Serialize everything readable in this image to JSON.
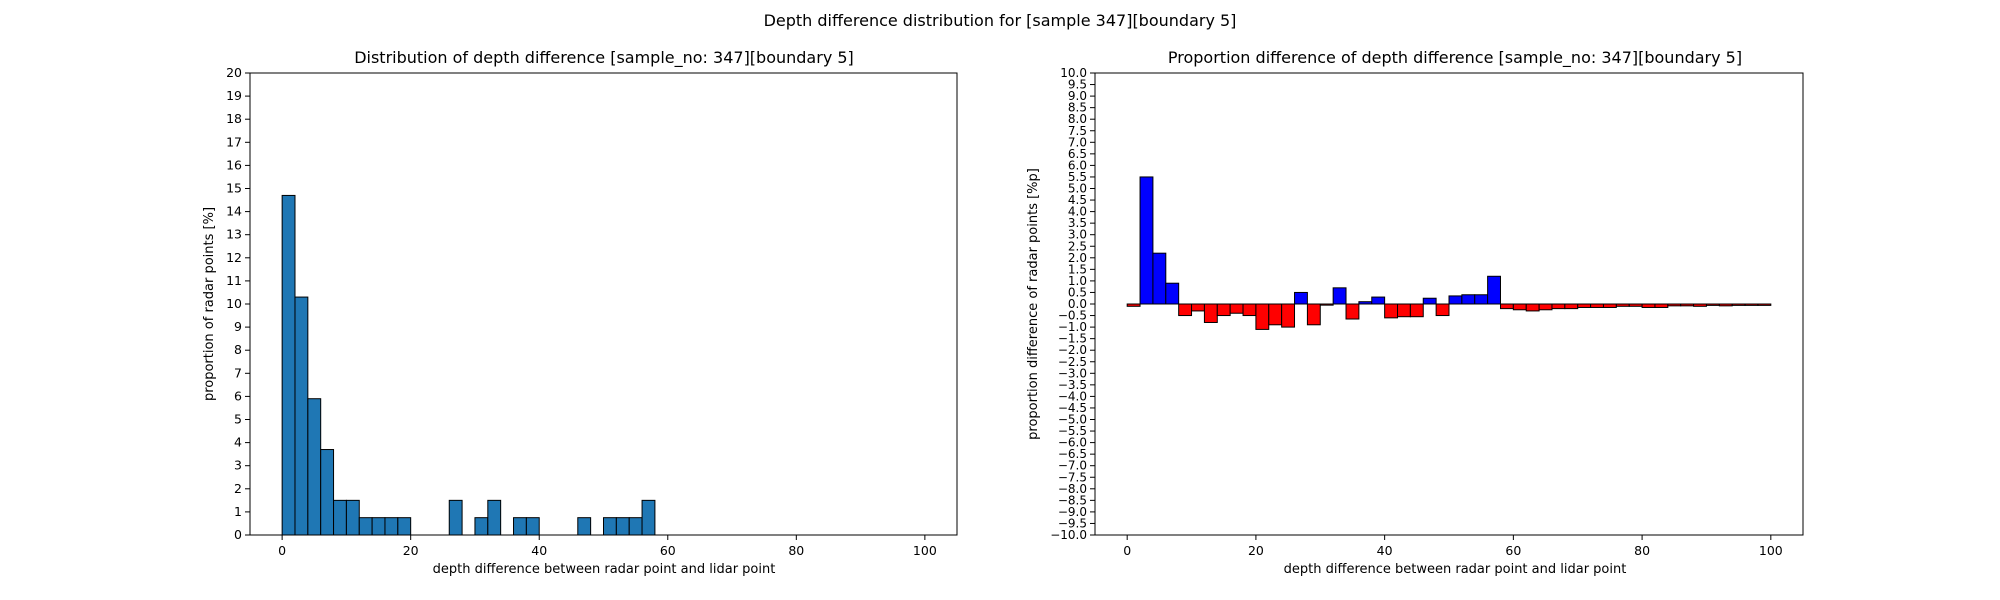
{
  "figure": {
    "suptitle": "Depth difference distribution for [sample 347][boundary 5]"
  },
  "chart_data": [
    {
      "type": "bar",
      "title": "Distribution of depth difference [sample_no: 347][boundary 5]",
      "xlabel": "depth difference between radar point and lidar point",
      "ylabel": "proportion of radar points [%]",
      "xlim": [
        -5,
        105
      ],
      "ylim": [
        0,
        20
      ],
      "xticks": [
        0,
        20,
        40,
        60,
        80,
        100
      ],
      "yticks": [
        0,
        1,
        2,
        3,
        4,
        5,
        6,
        7,
        8,
        9,
        10,
        11,
        12,
        13,
        14,
        15,
        16,
        17,
        18,
        19,
        20
      ],
      "bin_edges_start": 0,
      "bin_width": 2,
      "values": [
        14.7,
        10.3,
        5.9,
        3.7,
        1.5,
        1.5,
        0.75,
        0.75,
        0.75,
        0.75,
        0,
        0,
        0,
        1.5,
        0,
        0.75,
        1.5,
        0,
        0.75,
        0.75,
        0,
        0,
        0,
        0.75,
        0,
        0.75,
        0.75,
        0.75,
        1.5,
        0,
        0,
        0,
        0,
        0,
        0,
        0,
        0,
        0,
        0,
        0,
        0,
        0,
        0,
        0,
        0,
        0,
        0,
        0,
        0,
        0
      ],
      "color": "#1f77b4",
      "edgecolor": "#000000",
      "grid": false
    },
    {
      "type": "bar",
      "title": "Proportion difference of depth difference [sample_no: 347][boundary 5]",
      "xlabel": "depth difference between radar point and lidar point",
      "ylabel": "proportion difference of radar points [%p]",
      "xlim": [
        -5,
        105
      ],
      "ylim": [
        -10,
        10
      ],
      "xticks": [
        0,
        20,
        40,
        60,
        80,
        100
      ],
      "yticks": [
        -10.0,
        -9.5,
        -9.0,
        -8.5,
        -8.0,
        -7.5,
        -7.0,
        -6.5,
        -6.0,
        -5.5,
        -5.0,
        -4.5,
        -4.0,
        -3.5,
        -3.0,
        -2.5,
        -2.0,
        -1.5,
        -1.0,
        -0.5,
        0.0,
        0.5,
        1.0,
        1.5,
        2.0,
        2.5,
        3.0,
        3.5,
        4.0,
        4.5,
        5.0,
        5.5,
        6.0,
        6.5,
        7.0,
        7.5,
        8.0,
        8.5,
        9.0,
        9.5,
        10.0
      ],
      "bin_edges_start": 0,
      "bin_width": 2,
      "values": [
        -0.1,
        5.5,
        2.2,
        0.9,
        -0.5,
        -0.3,
        -0.8,
        -0.5,
        -0.4,
        -0.5,
        -1.1,
        -0.9,
        -1.0,
        0.5,
        -0.9,
        -0.05,
        0.7,
        -0.65,
        0.1,
        0.3,
        -0.6,
        -0.55,
        -0.55,
        0.25,
        -0.5,
        0.35,
        0.4,
        0.4,
        1.2,
        -0.2,
        -0.25,
        -0.3,
        -0.25,
        -0.2,
        -0.2,
        -0.15,
        -0.15,
        -0.15,
        -0.1,
        -0.1,
        -0.15,
        -0.15,
        -0.08,
        -0.08,
        -0.1,
        -0.06,
        -0.08,
        -0.06,
        -0.06,
        -0.06
      ],
      "positive_color": "#0000ff",
      "negative_color": "#ff0000",
      "edgecolor": "#000000",
      "grid": false
    }
  ]
}
